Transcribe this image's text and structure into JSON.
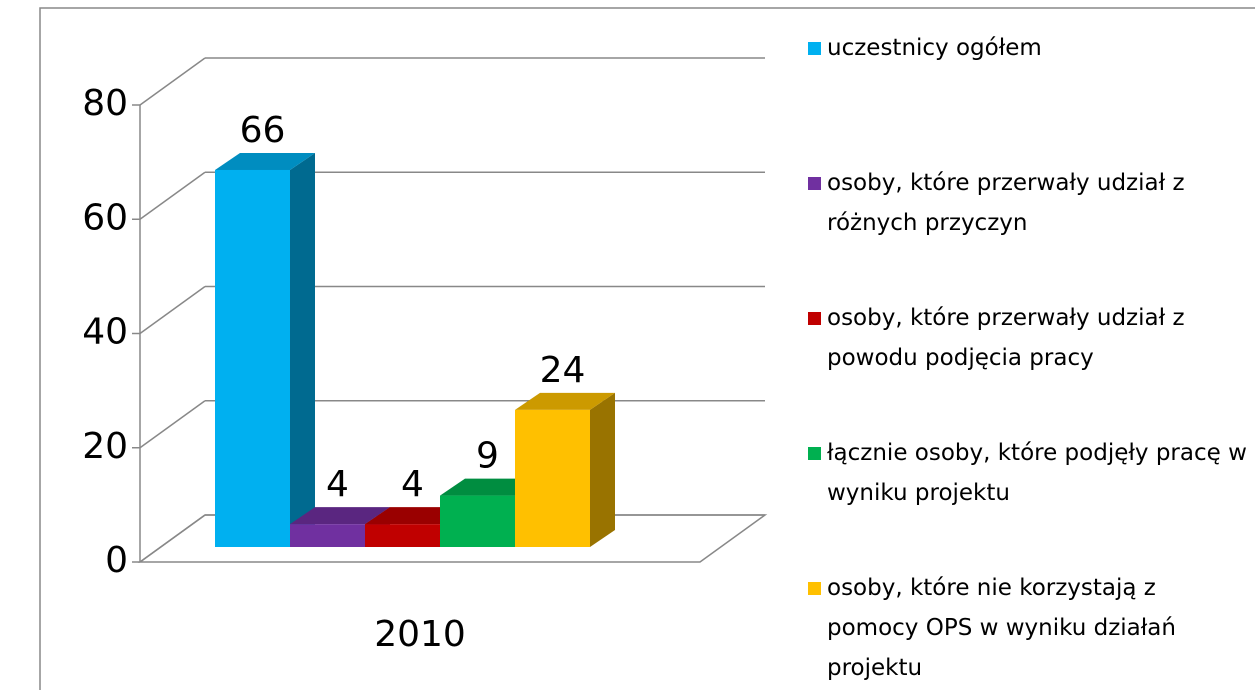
{
  "chart_data": {
    "type": "bar3d",
    "categories": [
      "2010"
    ],
    "series": [
      {
        "name": "uczestnicy ogółem",
        "color": "#00b0f0",
        "values": [
          66
        ]
      },
      {
        "name": "osoby, które przerwały udział z różnych przyczyn",
        "color": "#7030a0",
        "values": [
          4
        ]
      },
      {
        "name": "osoby, które przerwały udział z powodu podjęcia pracy",
        "color": "#c00000",
        "values": [
          4
        ]
      },
      {
        "name": "łącznie osoby, które podjęły pracę w wyniku projektu",
        "color": "#00b050",
        "values": [
          9
        ]
      },
      {
        "name": "osoby, które nie korzystają z pomocy OPS w wyniku działań projektu",
        "color": "#ffc000",
        "values": [
          24
        ]
      }
    ],
    "ylim": [
      0,
      80
    ],
    "yticks": [
      0,
      20,
      40,
      60,
      80
    ],
    "grid": true,
    "legend": "right"
  }
}
